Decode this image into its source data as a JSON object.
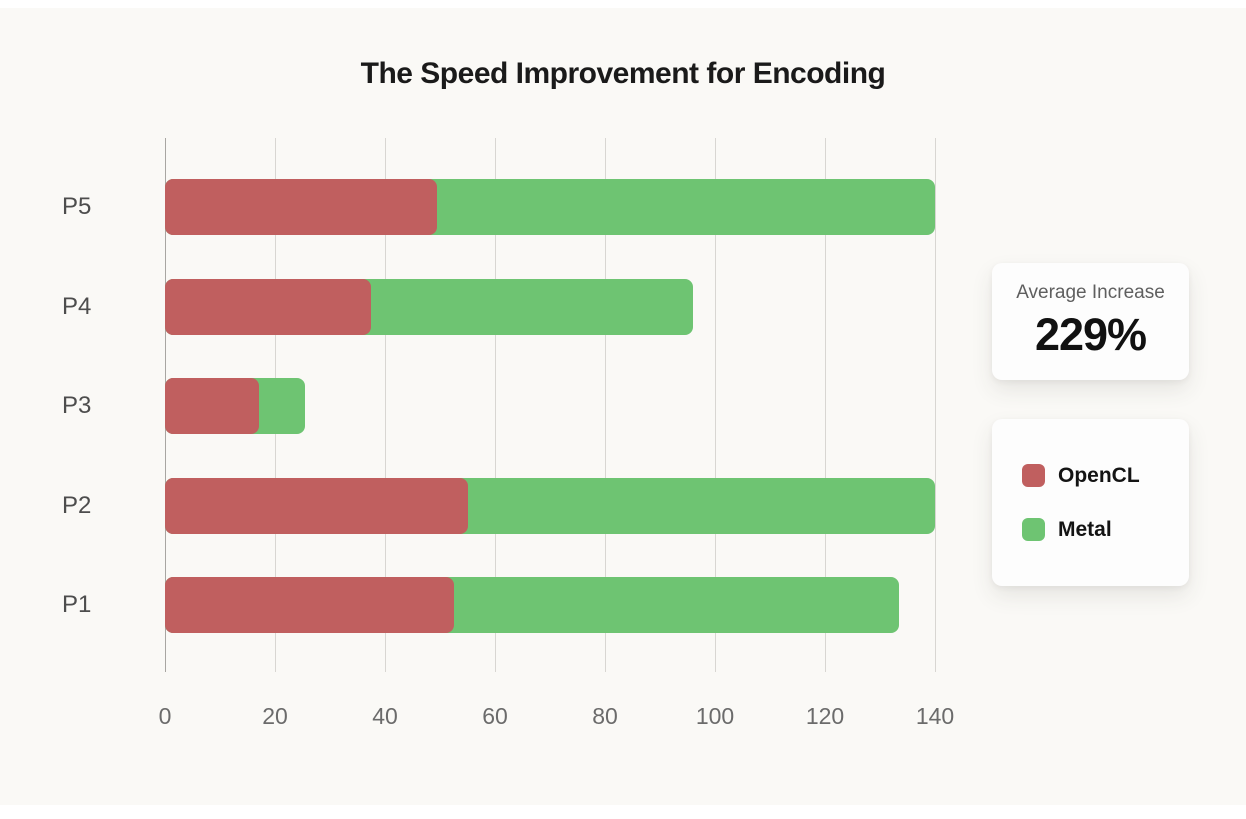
{
  "title": "The Speed Improvement for Encoding",
  "chart_data": {
    "type": "bar",
    "orientation": "horizontal",
    "title": "The Speed Improvement for Encoding",
    "categories": [
      "P5",
      "P4",
      "P3",
      "P2",
      "P1"
    ],
    "series": [
      {
        "name": "OpenCL",
        "color": "#c05f5f",
        "values": [
          49.5,
          37.5,
          17,
          55,
          52.5
        ]
      },
      {
        "name": "Metal",
        "color": "#6ec472",
        "values": [
          140,
          96,
          25.5,
          140,
          133.5
        ]
      }
    ],
    "series_render": "overlay: Metal bar drawn from 0 behind OpenCL bar",
    "xlabel": "",
    "ylabel": "",
    "xlim": [
      0,
      140
    ],
    "xticks": [
      0,
      20,
      40,
      60,
      80,
      100,
      120,
      140
    ],
    "grid": true,
    "legend_position": "right"
  },
  "stats_card": {
    "label": "Average Increase",
    "value": "229%"
  },
  "legend": {
    "items": [
      {
        "label": "OpenCL",
        "color": "#c05f5f"
      },
      {
        "label": "Metal",
        "color": "#6ec472"
      }
    ]
  },
  "colors": {
    "background": "#faf9f6",
    "card": "#fdfdfd",
    "grid": "#d8d6d2",
    "zero_axis": "#a8a6a2",
    "tick_text": "#6b6b6b",
    "category_text": "#4d4d4d",
    "title_text": "#1a1a1a"
  }
}
